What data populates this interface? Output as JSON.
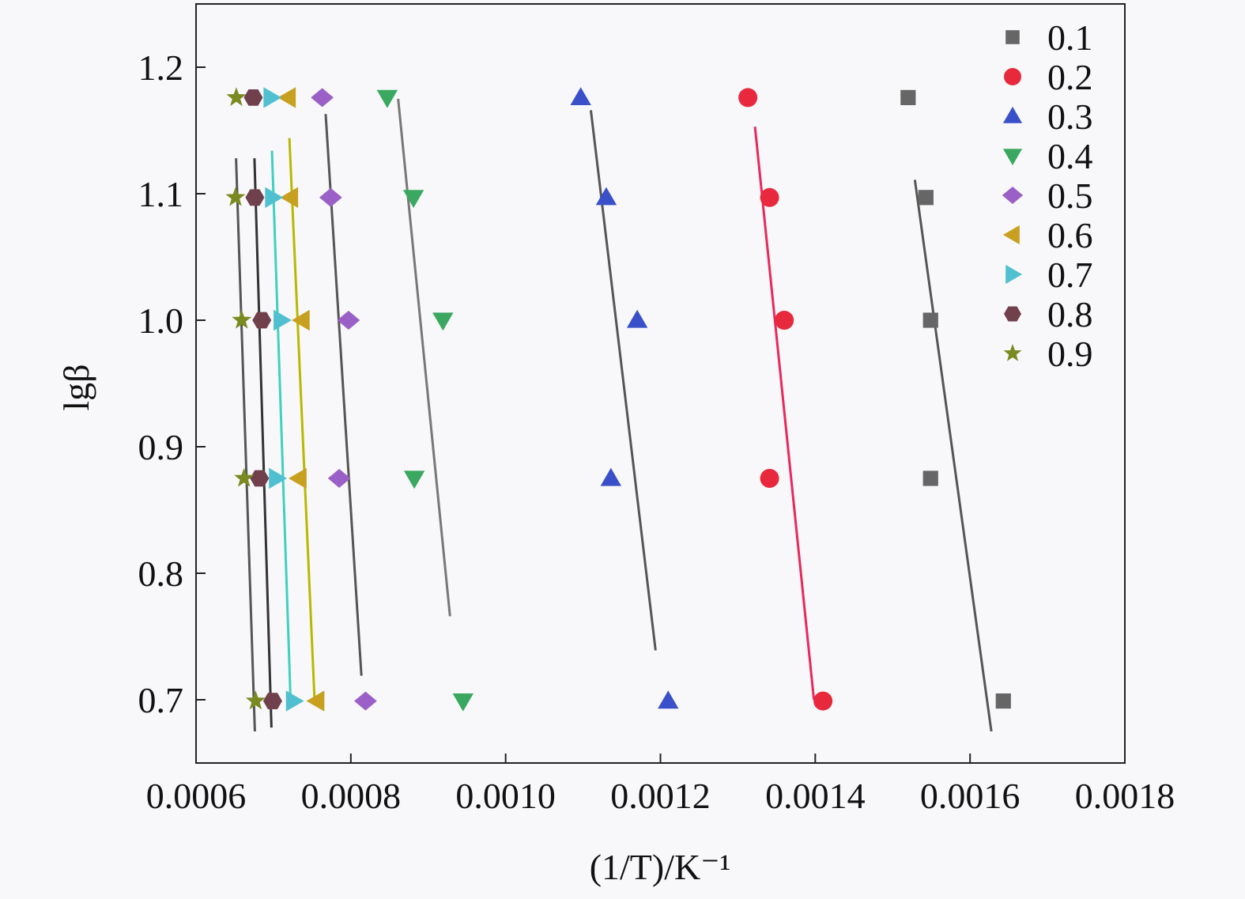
{
  "chart_data": {
    "type": "scatter",
    "title": "",
    "xlabel": "(1/T)/K⁻¹",
    "ylabel": "lgβ",
    "xlim": [
      0.0006,
      0.0018
    ],
    "ylim": [
      0.65,
      1.25
    ],
    "xticks": [
      "0.0006",
      "0.0008",
      "0.0010",
      "0.0012",
      "0.0014",
      "0.0016",
      "0.0018"
    ],
    "yticks": [
      "0.7",
      "0.8",
      "0.9",
      "1.0",
      "1.1",
      "1.2"
    ],
    "grid": false,
    "legend_position": "top-right",
    "y": [
      1.176,
      1.097,
      1.0,
      0.875,
      0.699
    ],
    "series": [
      {
        "name": "0.1",
        "marker": "square",
        "color": "#666666",
        "line_color": "#555555",
        "x": [
          0.00152,
          0.001543,
          0.001549,
          0.001549,
          0.001643
        ],
        "fit_y_range": [
          1.111,
          0.675
        ]
      },
      {
        "name": "0.2",
        "marker": "circle",
        "color": "#e8283c",
        "line_color": "#e8285a",
        "x": [
          0.001313,
          0.001341,
          0.00136,
          0.001341,
          0.00141
        ],
        "fit_y_range": [
          1.153,
          0.7
        ]
      },
      {
        "name": "0.3",
        "marker": "triangle-up",
        "color": "#3a50c8",
        "line_color": "#555555",
        "x": [
          0.001097,
          0.00113,
          0.00117,
          0.001136,
          0.00121
        ],
        "fit_y_range": [
          1.166,
          0.739
        ]
      },
      {
        "name": "0.4",
        "marker": "triangle-down",
        "color": "#3aa860",
        "line_color": "#777777",
        "x": [
          0.000847,
          0.000881,
          0.000919,
          0.000882,
          0.000945
        ],
        "fit_y_range": [
          1.175,
          0.766
        ]
      },
      {
        "name": "0.5",
        "marker": "diamond",
        "color": "#9a60c8",
        "line_color": "#555555",
        "x": [
          0.000763,
          0.000774,
          0.000797,
          0.000785,
          0.000819
        ],
        "fit_y_range": [
          1.163,
          0.719
        ]
      },
      {
        "name": "0.6",
        "marker": "triangle-left",
        "color": "#c8a020",
        "line_color": "#b8b800",
        "x": [
          0.000719,
          0.000722,
          0.000737,
          0.000733,
          0.000756
        ],
        "fit_y_range": [
          1.144,
          0.7
        ]
      },
      {
        "name": "0.7",
        "marker": "triangle-right",
        "color": "#50c0d0",
        "line_color": "#40d0c0",
        "x": [
          0.000697,
          0.000699,
          0.00071,
          0.000704,
          0.000726
        ],
        "fit_y_range": [
          1.134,
          0.7
        ]
      },
      {
        "name": "0.8",
        "marker": "hexagon",
        "color": "#70404c",
        "line_color": "#333333",
        "x": [
          0.000674,
          0.000676,
          0.000685,
          0.000682,
          0.000699
        ],
        "fit_y_range": [
          1.128,
          0.678
        ]
      },
      {
        "name": "0.9",
        "marker": "star",
        "color": "#7a8a20",
        "line_color": "#555555",
        "x": [
          0.000652,
          0.000651,
          0.000659,
          0.000662,
          0.000677
        ],
        "fit_y_range": [
          1.128,
          0.675
        ]
      }
    ]
  }
}
